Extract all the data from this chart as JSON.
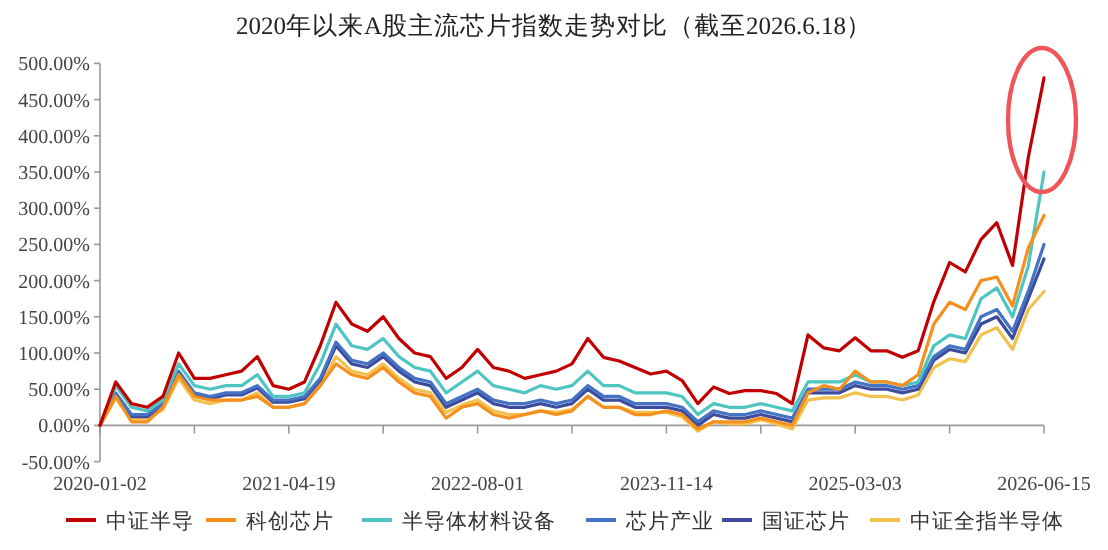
{
  "chart_data": {
    "type": "line",
    "title": "2020年以来A股主流芯片指数走势对比（截至2026.6.18）",
    "categories": [
      "2020-01-02",
      null,
      null,
      null,
      null,
      null,
      null,
      null,
      null,
      null,
      null,
      null,
      "2021-04-19",
      null,
      null,
      null,
      null,
      null,
      null,
      null,
      null,
      null,
      null,
      null,
      "2022-08-01",
      null,
      null,
      null,
      null,
      null,
      null,
      null,
      null,
      null,
      null,
      null,
      "2023-11-14",
      null,
      null,
      null,
      null,
      null,
      null,
      null,
      null,
      null,
      null,
      null,
      "2025-03-03",
      null,
      null,
      null,
      null,
      null,
      null,
      null,
      null,
      null,
      null,
      null,
      "2026-06-15"
    ],
    "series": [
      {
        "name": "中证半导",
        "color": "#c00000",
        "values": [
          0,
          60,
          30,
          25,
          40,
          100,
          65,
          65,
          70,
          75,
          95,
          55,
          50,
          60,
          110,
          170,
          140,
          130,
          150,
          120,
          100,
          95,
          65,
          80,
          105,
          80,
          75,
          65,
          70,
          75,
          85,
          120,
          94,
          89,
          80,
          71,
          75,
          62,
          30,
          53,
          44,
          48,
          48,
          44,
          30,
          125,
          107,
          103,
          121,
          103,
          103,
          94,
          103,
          171,
          225,
          212,
          257,
          280,
          221,
          370,
          480
        ]
      },
      {
        "name": "科创芯片",
        "color": "#f5901e",
        "values": [
          0,
          40,
          5,
          5,
          25,
          70,
          40,
          35,
          35,
          35,
          40,
          25,
          25,
          30,
          55,
          85,
          70,
          65,
          80,
          60,
          45,
          40,
          10,
          25,
          30,
          15,
          10,
          15,
          20,
          15,
          20,
          40,
          25,
          25,
          15,
          15,
          20,
          15,
          -5,
          5,
          5,
          5,
          10,
          5,
          0,
          45,
          55,
          50,
          75,
          60,
          60,
          55,
          70,
          140,
          170,
          160,
          200,
          205,
          165,
          245,
          290
        ]
      },
      {
        "name": "半导体材料设备",
        "color": "#4ec5c1",
        "values": [
          0,
          55,
          25,
          20,
          35,
          85,
          55,
          50,
          55,
          55,
          70,
          40,
          40,
          45,
          85,
          140,
          110,
          105,
          120,
          95,
          80,
          75,
          45,
          60,
          75,
          55,
          50,
          45,
          55,
          50,
          55,
          75,
          55,
          55,
          45,
          45,
          45,
          40,
          15,
          30,
          25,
          25,
          30,
          25,
          20,
          60,
          60,
          60,
          70,
          60,
          60,
          55,
          60,
          110,
          125,
          120,
          175,
          190,
          150,
          220,
          350
        ]
      },
      {
        "name": "芯片产业",
        "color": "#4472c4",
        "values": [
          0,
          45,
          15,
          15,
          30,
          75,
          45,
          40,
          45,
          45,
          55,
          35,
          35,
          40,
          65,
          115,
          90,
          85,
          100,
          80,
          65,
          60,
          30,
          40,
          50,
          35,
          30,
          30,
          35,
          30,
          35,
          55,
          40,
          40,
          30,
          30,
          30,
          25,
          5,
          20,
          15,
          15,
          20,
          15,
          10,
          50,
          50,
          50,
          60,
          55,
          55,
          50,
          55,
          95,
          110,
          105,
          150,
          160,
          130,
          185,
          250
        ]
      },
      {
        "name": "国证芯片",
        "color": "#3d4b9c",
        "values": [
          0,
          43,
          12,
          12,
          28,
          72,
          42,
          37,
          42,
          42,
          52,
          32,
          32,
          37,
          62,
          110,
          85,
          80,
          95,
          75,
          60,
          55,
          25,
          35,
          45,
          30,
          25,
          25,
          30,
          25,
          30,
          50,
          35,
          35,
          25,
          25,
          25,
          20,
          0,
          15,
          10,
          10,
          15,
          10,
          5,
          45,
          45,
          45,
          55,
          50,
          50,
          45,
          50,
          90,
          105,
          100,
          140,
          150,
          120,
          175,
          230
        ]
      },
      {
        "name": "中证全指半导体",
        "color": "#f2c14e",
        "values": [
          0,
          38,
          8,
          10,
          22,
          65,
          35,
          30,
          35,
          35,
          45,
          25,
          25,
          30,
          55,
          95,
          75,
          70,
          85,
          65,
          50,
          45,
          18,
          28,
          35,
          20,
          15,
          15,
          20,
          18,
          22,
          40,
          25,
          25,
          18,
          18,
          18,
          12,
          -8,
          5,
          2,
          2,
          8,
          2,
          -5,
          35,
          38,
          38,
          45,
          40,
          40,
          35,
          42,
          80,
          92,
          88,
          125,
          135,
          105,
          160,
          185
        ]
      }
    ],
    "ylim": [
      -50,
      500
    ],
    "yticks": [
      {
        "value": -50,
        "label": "-50.00%"
      },
      {
        "value": 0,
        "label": "0.00%"
      },
      {
        "value": 50,
        "label": "50.00%"
      },
      {
        "value": 100,
        "label": "100.00%"
      },
      {
        "value": 150,
        "label": "150.00%"
      },
      {
        "value": 200,
        "label": "200.00%"
      },
      {
        "value": 250,
        "label": "250.00%"
      },
      {
        "value": 300,
        "label": "300.00%"
      },
      {
        "value": 350,
        "label": "350.00%"
      },
      {
        "value": 400,
        "label": "400.00%"
      },
      {
        "value": 450,
        "label": "450.00%"
      },
      {
        "value": 500,
        "label": "500.00%"
      }
    ],
    "grid": false,
    "legend": "bottom"
  }
}
